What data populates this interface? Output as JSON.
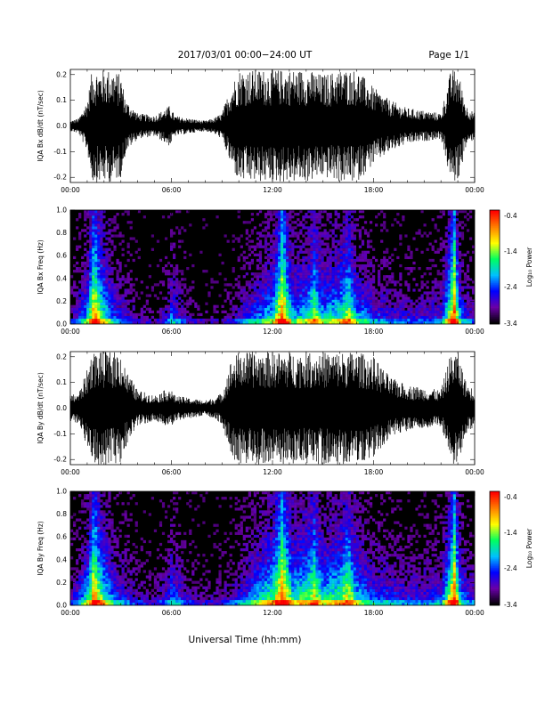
{
  "header": {
    "title": "2017/03/01   00:00−24:00 UT",
    "page": "Page 1/1"
  },
  "xaxis_label": "Universal Time (hh:mm)",
  "colorbar": {
    "label": "Log₁₀ Power",
    "ticks": [
      "-0.4",
      "-1.4",
      "-2.4",
      "-3.4"
    ],
    "min": -3.4,
    "max": -0.4,
    "colors": [
      "#000000",
      "#6a00a8",
      "#0000ff",
      "#00c0ff",
      "#00ff60",
      "#ffff00",
      "#ff8000",
      "#ff0000"
    ]
  },
  "chart_data": [
    {
      "type": "line",
      "panel": "bx-dbdt",
      "ylabel": "IQA Bx dB/dt (nT/sec)",
      "xlim": [
        0,
        24
      ],
      "ylim": [
        -0.22,
        0.22
      ],
      "x_ticks": [
        "00:00",
        "06:00",
        "12:00",
        "18:00",
        "00:00"
      ],
      "y_ticks": [
        "0.2",
        "0.1",
        "0.0",
        "-0.1",
        "-0.2"
      ],
      "envelope": {
        "x": [
          0,
          0.5,
          1.0,
          1.3,
          1.5,
          2.0,
          2.5,
          3.0,
          3.3,
          4.0,
          5.0,
          5.9,
          6.2,
          7.0,
          8.0,
          8.5,
          9.0,
          9.5,
          10.0,
          11.0,
          12.0,
          13.0,
          14.0,
          15.0,
          16.0,
          17.0,
          18.0,
          19.0,
          20.0,
          21.0,
          22.0,
          22.6,
          23.0,
          23.5,
          24.0
        ],
        "amplitude": [
          0.02,
          0.03,
          0.1,
          0.22,
          0.22,
          0.22,
          0.22,
          0.2,
          0.1,
          0.05,
          0.04,
          0.08,
          0.04,
          0.03,
          0.02,
          0.03,
          0.05,
          0.15,
          0.22,
          0.22,
          0.22,
          0.22,
          0.22,
          0.2,
          0.22,
          0.22,
          0.15,
          0.1,
          0.07,
          0.06,
          0.05,
          0.22,
          0.22,
          0.08,
          0.05
        ]
      }
    },
    {
      "type": "heatmap",
      "panel": "bx-spectrogram",
      "ylabel": "IQA Bx Freq (Hz)",
      "xlim": [
        0,
        24
      ],
      "ylim": [
        0,
        1.0
      ],
      "x_ticks": [
        "00:00",
        "06:00",
        "12:00",
        "18:00",
        "00:00"
      ],
      "y_ticks": [
        "1.0",
        "0.8",
        "0.6",
        "0.4",
        "0.2",
        "0.0"
      ],
      "value_range": [
        -3.4,
        -0.4
      ],
      "activity": {
        "x": [
          0,
          1.0,
          1.4,
          1.8,
          2.5,
          3.0,
          4.0,
          5.0,
          5.8,
          6.0,
          7.0,
          8.0,
          9.0,
          10.0,
          11.0,
          12.0,
          12.6,
          13.2,
          14.0,
          14.5,
          15.0,
          16.0,
          16.5,
          17.0,
          18.0,
          19.0,
          20.0,
          21.0,
          22.0,
          22.8,
          23.2,
          24.0
        ],
        "level": [
          0.15,
          0.5,
          0.9,
          0.7,
          0.4,
          0.3,
          0.15,
          0.1,
          0.25,
          0.4,
          0.15,
          0.1,
          0.1,
          0.25,
          0.4,
          0.55,
          0.95,
          0.5,
          0.55,
          0.75,
          0.5,
          0.6,
          0.75,
          0.5,
          0.35,
          0.3,
          0.25,
          0.25,
          0.3,
          0.95,
          0.4,
          0.2
        ]
      }
    },
    {
      "type": "line",
      "panel": "by-dbdt",
      "ylabel": "IQA By dB/dt (nT/sec)",
      "xlim": [
        0,
        24
      ],
      "ylim": [
        -0.22,
        0.22
      ],
      "x_ticks": [
        "00:00",
        "06:00",
        "12:00",
        "18:00",
        "00:00"
      ],
      "y_ticks": [
        "0.2",
        "0.1",
        "0.0",
        "-0.1",
        "-0.2"
      ],
      "envelope": {
        "x": [
          0,
          0.5,
          1.0,
          1.3,
          1.5,
          2.0,
          2.5,
          3.0,
          3.3,
          4.0,
          5.0,
          5.9,
          6.2,
          7.0,
          8.0,
          8.5,
          9.0,
          9.5,
          10.0,
          11.0,
          12.0,
          13.0,
          14.0,
          15.0,
          16.0,
          17.0,
          18.0,
          19.0,
          20.0,
          21.0,
          22.0,
          22.6,
          23.0,
          23.5,
          24.0
        ],
        "amplitude": [
          0.05,
          0.06,
          0.15,
          0.22,
          0.22,
          0.22,
          0.22,
          0.22,
          0.15,
          0.07,
          0.05,
          0.08,
          0.05,
          0.04,
          0.03,
          0.04,
          0.06,
          0.18,
          0.22,
          0.22,
          0.22,
          0.22,
          0.22,
          0.22,
          0.22,
          0.22,
          0.2,
          0.12,
          0.09,
          0.08,
          0.07,
          0.22,
          0.22,
          0.1,
          0.07
        ]
      }
    },
    {
      "type": "heatmap",
      "panel": "by-spectrogram",
      "ylabel": "IQA By Freq (Hz)",
      "xlim": [
        0,
        24
      ],
      "ylim": [
        0,
        1.0
      ],
      "x_ticks": [
        "00:00",
        "06:00",
        "12:00",
        "18:00",
        "00:00"
      ],
      "y_ticks": [
        "1.0",
        "0.8",
        "0.6",
        "0.4",
        "0.2",
        "0.0"
      ],
      "value_range": [
        -3.4,
        -0.4
      ],
      "activity": {
        "x": [
          0,
          1.0,
          1.4,
          1.8,
          2.5,
          3.0,
          4.0,
          5.0,
          5.8,
          6.0,
          7.0,
          8.0,
          9.0,
          10.0,
          11.0,
          12.0,
          12.6,
          13.2,
          14.0,
          14.5,
          15.0,
          16.0,
          16.5,
          17.0,
          18.0,
          19.0,
          20.0,
          21.0,
          22.0,
          22.8,
          23.2,
          24.0
        ],
        "level": [
          0.2,
          0.55,
          0.9,
          0.7,
          0.45,
          0.35,
          0.2,
          0.15,
          0.3,
          0.45,
          0.2,
          0.15,
          0.15,
          0.3,
          0.5,
          0.65,
          0.95,
          0.6,
          0.65,
          0.8,
          0.55,
          0.65,
          0.8,
          0.55,
          0.4,
          0.35,
          0.3,
          0.3,
          0.35,
          0.95,
          0.45,
          0.25
        ]
      }
    }
  ]
}
